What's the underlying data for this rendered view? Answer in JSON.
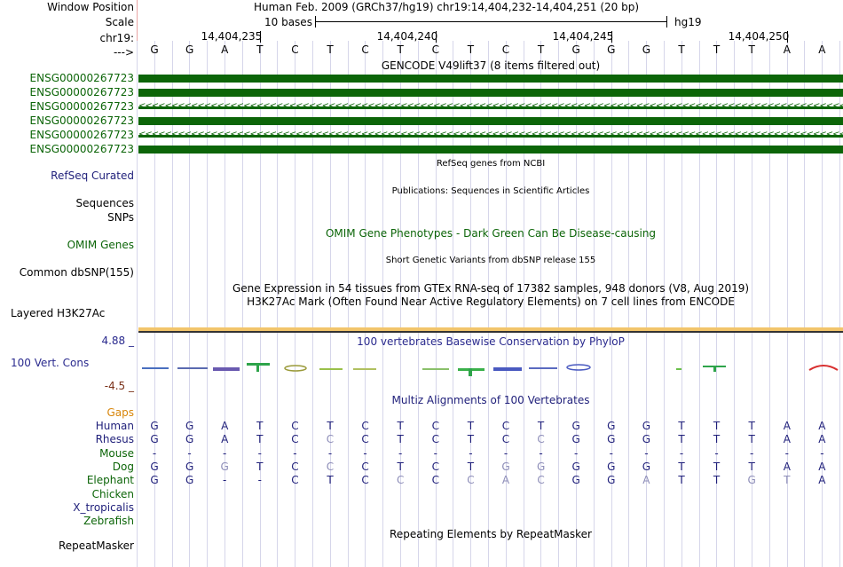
{
  "header": {
    "window_position_label": "Window Position",
    "scale_label": "Scale",
    "chr_label": "chr19:",
    "strand_label": "--->",
    "window_position": "Human Feb. 2009 (GRCh37/hg19)   chr19:14,404,232-14,404,251 (20 bp)",
    "scale_text": "10 bases",
    "assembly": "hg19",
    "ticks": [
      "14,404,235",
      "14,404,240",
      "14,404,245",
      "14,404,250"
    ]
  },
  "bases": [
    "G",
    "G",
    "A",
    "T",
    "C",
    "T",
    "C",
    "T",
    "C",
    "T",
    "C",
    "T",
    "G",
    "G",
    "G",
    "T",
    "T",
    "T",
    "A",
    "A"
  ],
  "gencode": {
    "title": "GENCODE V49lift37 (8 items filtered out)",
    "items": [
      {
        "name": "ENSG00000267723",
        "style": "solid"
      },
      {
        "name": "ENSG00000267723",
        "style": "solid"
      },
      {
        "name": "ENSG00000267723",
        "style": "arrows"
      },
      {
        "name": "ENSG00000267723",
        "style": "solid"
      },
      {
        "name": "ENSG00000267723",
        "style": "arrows"
      },
      {
        "name": "ENSG00000267723",
        "style": "solid"
      }
    ],
    "color": "#0c6508"
  },
  "tracks": {
    "refseq_title": "RefSeq genes from NCBI",
    "refseq_label": "RefSeq Curated",
    "publications_title": "Publications: Sequences in Scientific Articles",
    "sequences_label": "Sequences",
    "snps_label": "SNPs",
    "omim_title": "OMIM Gene Phenotypes - Dark Green Can Be Disease-causing",
    "omim_label": "OMIM Genes",
    "dbsnp_title": "Short Genetic Variants from dbSNP release 155",
    "dbsnp_label": "Common dbSNP(155)",
    "gtex_title": "Gene Expression in 54 tissues from GTEx RNA-seq of 17382 samples, 948 donors (V8, Aug 2019)",
    "h3k27ac_title": "H3K27Ac Mark (Often Found Near Active Regulatory Elements) on 7 cell lines from ENCODE",
    "h3k27ac_label": "Layered H3K27Ac",
    "phylop_title": "100 vertebrates Basewise Conservation by PhyloP",
    "cons_label": "100 Vert. Cons",
    "cons_max": "4.88 _",
    "cons_min": "-4.5 _",
    "multiz_title": "Multiz Alignments of 100 Vertebrates",
    "gaps_label": "Gaps",
    "repeat_title": "Repeating Elements by RepeatMasker",
    "repeat_label": "RepeatMasker"
  },
  "alignment": [
    {
      "species": "Human",
      "color": "#1f1f7a",
      "bases": [
        "G",
        "G",
        "A",
        "T",
        "C",
        "T",
        "C",
        "T",
        "C",
        "T",
        "C",
        "T",
        "G",
        "G",
        "G",
        "T",
        "T",
        "T",
        "A",
        "A"
      ],
      "faded": []
    },
    {
      "species": "Rhesus",
      "color": "#1f1f7a",
      "bases": [
        "G",
        "G",
        "A",
        "T",
        "C",
        "C",
        "C",
        "T",
        "C",
        "T",
        "C",
        "C",
        "G",
        "G",
        "G",
        "T",
        "T",
        "T",
        "A",
        "A"
      ],
      "faded": [
        5,
        11
      ]
    },
    {
      "species": "Mouse",
      "color": "#0c6508",
      "bases": [
        "-",
        "-",
        "-",
        "-",
        "-",
        "-",
        "-",
        "-",
        "-",
        "-",
        "-",
        "-",
        "-",
        "-",
        "-",
        "-",
        "-",
        "-",
        "-",
        "-"
      ],
      "faded": []
    },
    {
      "species": "Dog",
      "color": "#0c6508",
      "bases": [
        "G",
        "G",
        "G",
        "T",
        "C",
        "C",
        "C",
        "T",
        "C",
        "T",
        "G",
        "G",
        "G",
        "G",
        "G",
        "T",
        "T",
        "T",
        "A",
        "A"
      ],
      "faded": [
        2,
        5,
        10,
        11
      ]
    },
    {
      "species": "Elephant",
      "color": "#0c6508",
      "bases": [
        "G",
        "G",
        "-",
        "-",
        "C",
        "T",
        "C",
        "C",
        "C",
        "C",
        "A",
        "C",
        "G",
        "G",
        "A",
        "T",
        "T",
        "G",
        "T",
        "A"
      ],
      "faded": [
        7,
        9,
        10,
        11,
        14,
        17,
        18
      ]
    },
    {
      "species": "Chicken",
      "color": "#0c6508",
      "bases": [],
      "faded": []
    },
    {
      "species": "X_tropicalis",
      "color": "#1f1f7a",
      "bases": [],
      "faded": []
    },
    {
      "species": "Zebrafish",
      "color": "#0c6508",
      "bases": [],
      "faded": []
    }
  ]
}
